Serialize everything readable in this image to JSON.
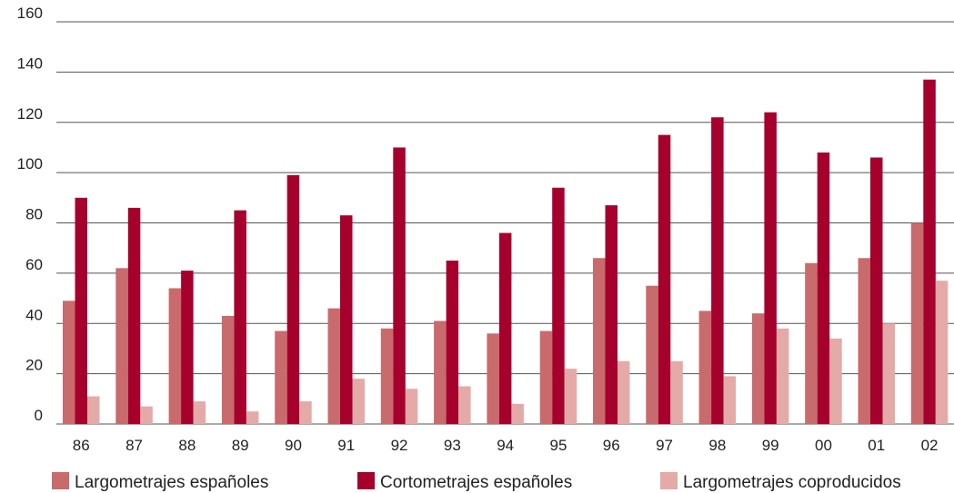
{
  "chart_data": {
    "type": "bar",
    "categories": [
      "86",
      "87",
      "88",
      "89",
      "90",
      "91",
      "92",
      "93",
      "94",
      "95",
      "96",
      "97",
      "98",
      "99",
      "00",
      "01",
      "02"
    ],
    "series": [
      {
        "name": "Largometrajes españoles",
        "color": "#c96a6c",
        "values": [
          49,
          62,
          54,
          43,
          37,
          46,
          38,
          41,
          36,
          37,
          66,
          55,
          45,
          44,
          64,
          66,
          80
        ]
      },
      {
        "name": "Cortometrajes españoles",
        "color": "#a6002c",
        "values": [
          90,
          86,
          61,
          85,
          99,
          83,
          110,
          65,
          76,
          94,
          87,
          115,
          122,
          124,
          108,
          106,
          137
        ]
      },
      {
        "name": "Largometrajes coproducidos",
        "color": "#e4aaa8",
        "values": [
          11,
          7,
          9,
          5,
          9,
          18,
          14,
          15,
          8,
          22,
          25,
          25,
          19,
          38,
          34,
          40,
          57
        ]
      }
    ],
    "yticks": [
      "0",
      "20",
      "40",
      "60",
      "80",
      "100",
      "120",
      "140",
      "160"
    ],
    "ylim": [
      0,
      160
    ],
    "grid": true,
    "legend_position": "bottom",
    "title": "",
    "xlabel": "",
    "ylabel": ""
  }
}
